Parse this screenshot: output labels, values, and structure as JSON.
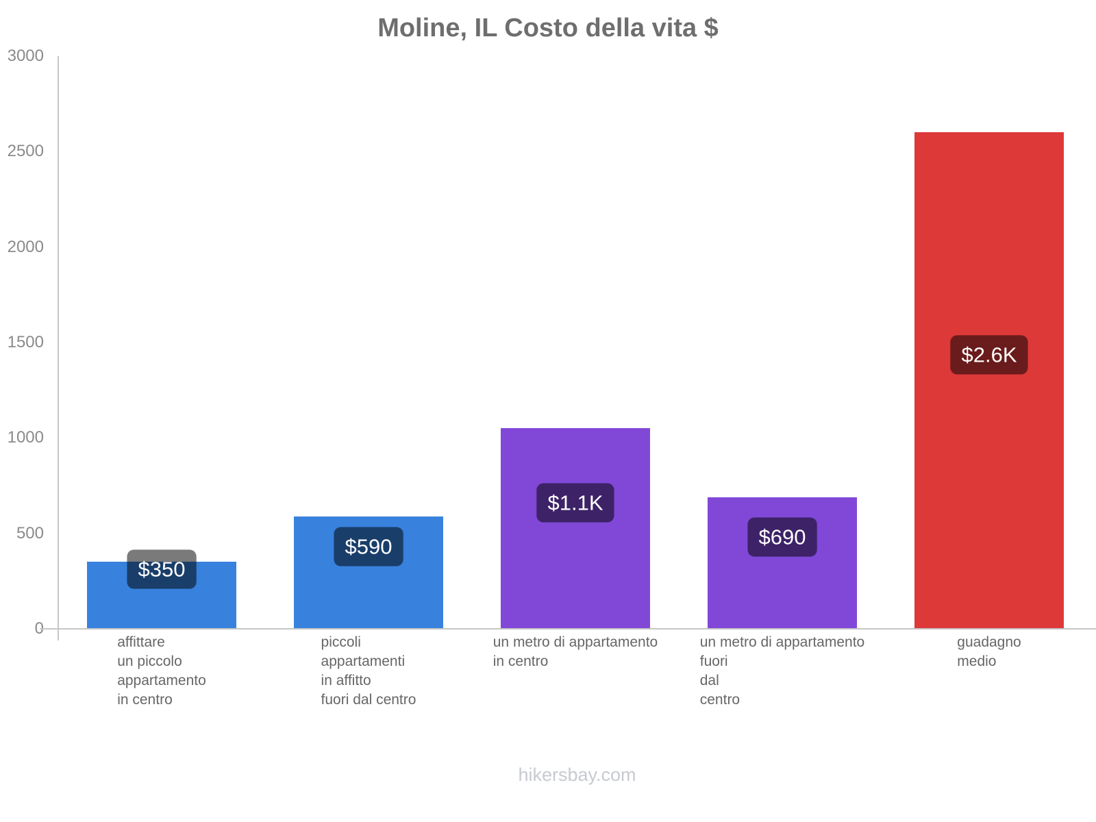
{
  "footer": {
    "text": "hikersbay.com"
  },
  "chart_data": {
    "type": "bar",
    "title": "Moline, IL Costo della vita $",
    "xlabel": "",
    "ylabel": "",
    "ylim": [
      0,
      3000
    ],
    "yticks": [
      0,
      500,
      1000,
      1500,
      2000,
      2500,
      3000
    ],
    "grid": false,
    "legend": "none",
    "currency": "$",
    "colors": {
      "rent_bars": "#3882de",
      "per_meter_bars": "#8148d8",
      "salary_bar": "#de3939",
      "badge_bg": "rgba(0,0,0,0.52)",
      "badge_text": "#ffffff",
      "axis": "#c6c6c6",
      "title_text": "#6e6e6e",
      "tick_text": "#8a8a8a",
      "label_text": "#666666",
      "watermark_text": "#c7cad1"
    },
    "categories": [
      "affittare un piccolo appartamento in centro",
      "piccoli appartamenti in affitto fuori dal centro",
      "un metro di appartamento in centro",
      "un metro di appartamento fuori dal centro",
      "guadagno medio"
    ],
    "bars": [
      {
        "label_lines": [
          "affittare",
          "un piccolo",
          "appartamento",
          "in centro"
        ],
        "value": 350,
        "display": "$350",
        "color": "#3882de"
      },
      {
        "label_lines": [
          "piccoli",
          "appartamenti",
          "in affitto",
          "fuori dal centro"
        ],
        "value": 590,
        "display": "$590",
        "color": "#3882de"
      },
      {
        "label_lines": [
          "un metro di appartamento",
          "in centro"
        ],
        "value": 1050,
        "display": "$1.1K",
        "color": "#8148d8"
      },
      {
        "label_lines": [
          "un metro di appartamento",
          "fuori",
          "dal",
          "centro"
        ],
        "value": 690,
        "display": "$690",
        "color": "#8148d8"
      },
      {
        "label_lines": [
          "guadagno",
          "medio"
        ],
        "value": 2600,
        "display": "$2.6K",
        "color": "#de3939"
      }
    ]
  }
}
